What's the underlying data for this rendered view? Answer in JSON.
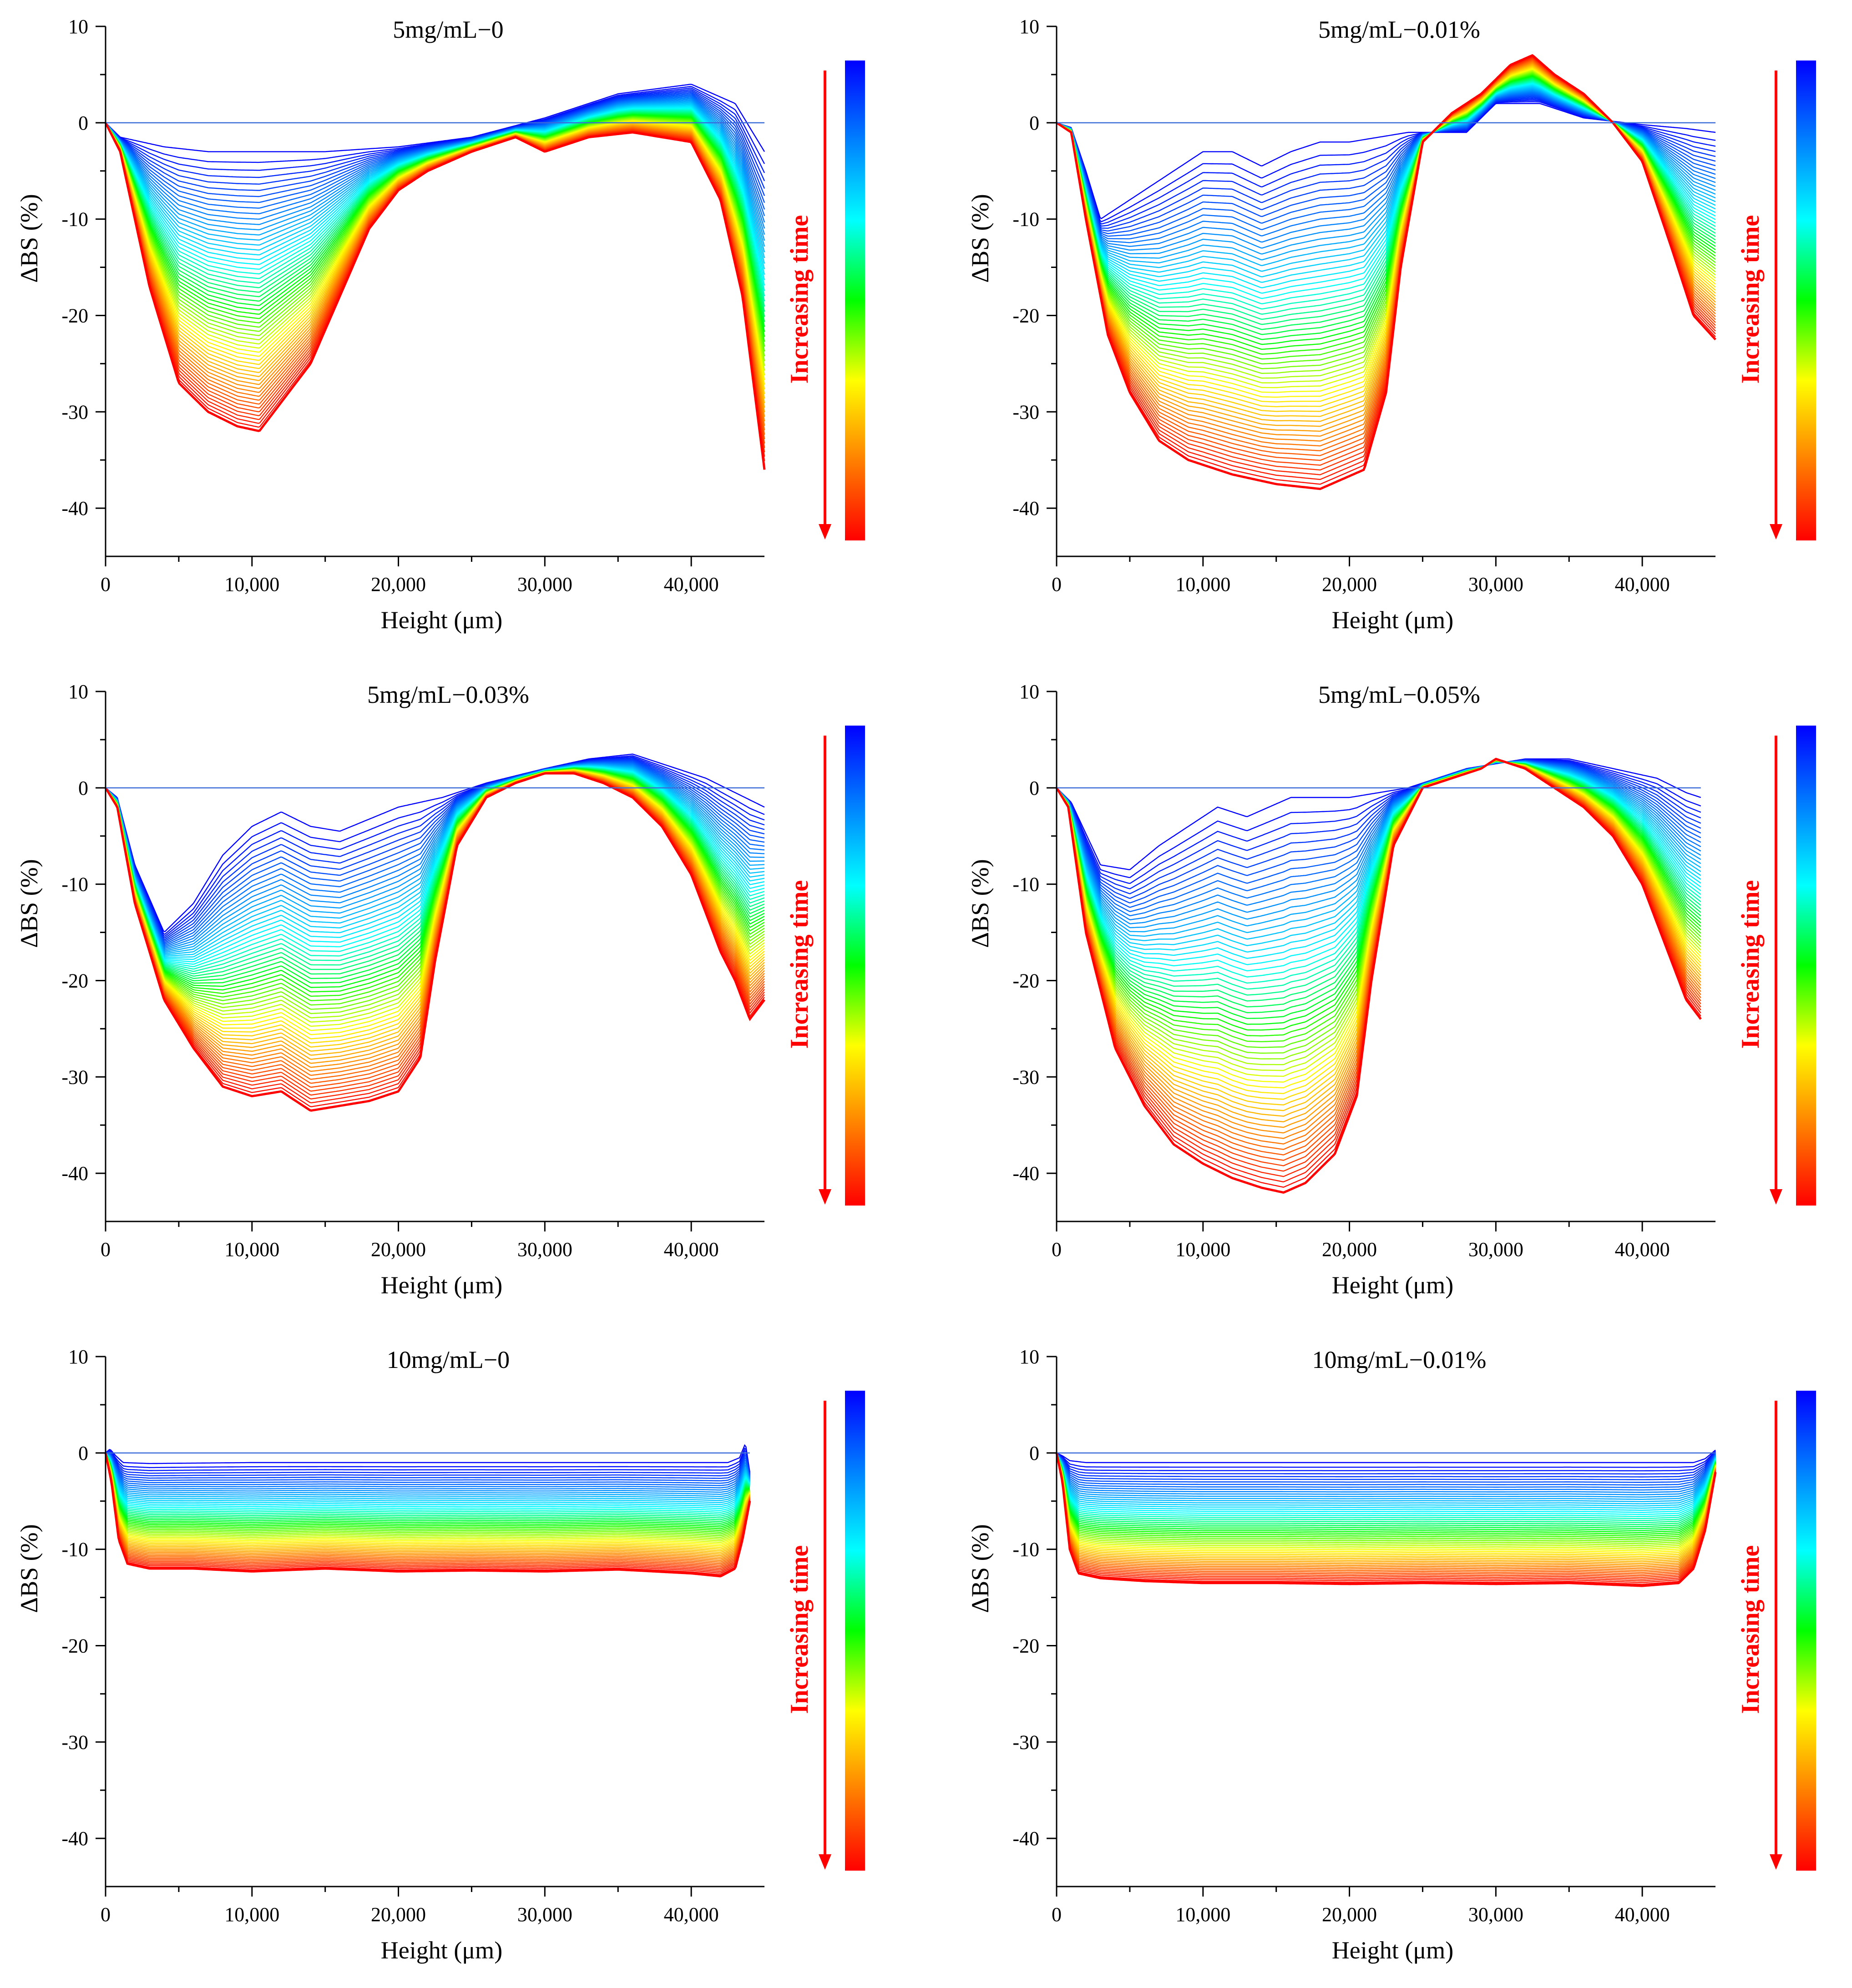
{
  "figure": {
    "legend_label": "Increasing time",
    "colormap": [
      "#ff0000",
      "#ff8000",
      "#ffff00",
      "#00ff00",
      "#00ffff",
      "#0080ff",
      "#0000ff"
    ],
    "arrow_color": "#ff0000"
  },
  "chart_data": [
    {
      "type": "line",
      "title": "5mg/mL−0",
      "xlabel": "Height (μm)",
      "ylabel": "ΔBS (%)",
      "xlim": [
        0,
        45000
      ],
      "ylim": [
        -45,
        10
      ],
      "xticks": [
        0,
        10000,
        20000,
        30000,
        40000
      ],
      "xtick_labels": [
        "0",
        "10,000",
        "20,000",
        "30,000",
        "40,000"
      ],
      "yticks": [
        10,
        0,
        -10,
        -20,
        -30,
        -40
      ],
      "ytick_labels": [
        "10",
        "0",
        "-10",
        "-20",
        "-30",
        "-40"
      ],
      "n_curves": 60,
      "baseline": 0,
      "x_end": 45000,
      "first_curve": {
        "x": [
          0,
          1000,
          4000,
          7000,
          10000,
          15000,
          20000,
          25000,
          30000,
          35000,
          40000,
          43000,
          45000
        ],
        "y": [
          0,
          -1.5,
          -2.5,
          -3,
          -3,
          -3,
          -2.5,
          -1.5,
          0.5,
          3,
          4,
          2,
          -3
        ]
      },
      "final_curve": {
        "x": [
          0,
          1000,
          3000,
          5000,
          7000,
          9000,
          10500,
          12000,
          14000,
          16000,
          18000,
          20000,
          22000,
          25000,
          28000,
          30000,
          33000,
          36000,
          40000,
          42000,
          43500,
          45000
        ],
        "y": [
          0,
          -3,
          -17,
          -27,
          -30,
          -31.5,
          -32,
          -29,
          -25,
          -18,
          -11,
          -7,
          -5,
          -3,
          -1.5,
          -3,
          -1.5,
          -1,
          -2,
          -8,
          -18,
          -36
        ]
      }
    },
    {
      "type": "line",
      "title": "5mg/mL−0.01%",
      "xlabel": "Height (μm)",
      "ylabel": "ΔBS (%)",
      "xlim": [
        0,
        45000
      ],
      "ylim": [
        -45,
        10
      ],
      "xticks": [
        0,
        10000,
        20000,
        30000,
        40000
      ],
      "xtick_labels": [
        "0",
        "10,000",
        "20,000",
        "30,000",
        "40,000"
      ],
      "yticks": [
        10,
        0,
        -10,
        -20,
        -30,
        -40
      ],
      "ytick_labels": [
        "10",
        "0",
        "-10",
        "-20",
        "-30",
        "-40"
      ],
      "n_curves": 60,
      "baseline": 0,
      "x_end": 45000,
      "first_curve": {
        "x": [
          0,
          1000,
          2000,
          3000,
          5000,
          8000,
          10000,
          12000,
          14000,
          16000,
          18000,
          20000,
          24000,
          28000,
          30000,
          33000,
          36000,
          40000,
          43000,
          45000
        ],
        "y": [
          0,
          -0.5,
          -5,
          -10,
          -8,
          -5,
          -3,
          -3,
          -4.5,
          -3,
          -2,
          -2,
          -1,
          -1,
          2,
          2,
          0.5,
          -0.2,
          -0.6,
          -1
        ]
      },
      "final_curve": {
        "x": [
          0,
          1000,
          2000,
          3500,
          5000,
          7000,
          9000,
          12000,
          15000,
          18000,
          21000,
          22500,
          23500,
          25000,
          27000,
          29000,
          31000,
          32500,
          34000,
          36000,
          38000,
          40000,
          42000,
          43500,
          45000
        ],
        "y": [
          0,
          -1,
          -10,
          -22,
          -28,
          -33,
          -35,
          -36.5,
          -37.5,
          -38,
          -36,
          -28,
          -15,
          -2,
          1,
          3,
          6,
          7,
          5,
          3,
          0,
          -4,
          -13,
          -20,
          -22.5
        ]
      }
    },
    {
      "type": "line",
      "title": "5mg/mL−0.03%",
      "xlabel": "Height (μm)",
      "ylabel": "ΔBS (%)",
      "xlim": [
        0,
        45000
      ],
      "ylim": [
        -45,
        10
      ],
      "xticks": [
        0,
        10000,
        20000,
        30000,
        40000
      ],
      "xtick_labels": [
        "0",
        "10,000",
        "20,000",
        "30,000",
        "40,000"
      ],
      "yticks": [
        10,
        0,
        -10,
        -20,
        -30,
        -40
      ],
      "ytick_labels": [
        "10",
        "0",
        "-10",
        "-20",
        "-30",
        "-40"
      ],
      "n_curves": 60,
      "baseline": 0,
      "x_end": 45000,
      "first_curve": {
        "x": [
          0,
          800,
          2000,
          4000,
          6000,
          8000,
          10000,
          12000,
          14000,
          16000,
          20000,
          23000,
          26000,
          30000,
          33000,
          36000,
          38000,
          41000,
          43000,
          45000
        ],
        "y": [
          0,
          -1,
          -8,
          -15,
          -12,
          -7,
          -4,
          -2.5,
          -4,
          -4.5,
          -2,
          -1,
          0.5,
          2,
          3,
          3.5,
          2.5,
          1,
          -0.5,
          -2
        ]
      },
      "final_curve": {
        "x": [
          0,
          800,
          2000,
          4000,
          6000,
          8000,
          10000,
          12000,
          14000,
          16000,
          18000,
          20000,
          21500,
          22500,
          24000,
          26000,
          28000,
          30000,
          32000,
          34000,
          36000,
          38000,
          40000,
          42000,
          43000,
          44000,
          45000
        ],
        "y": [
          0,
          -2,
          -12,
          -22,
          -27,
          -31,
          -32,
          -31.5,
          -33.5,
          -33,
          -32.5,
          -31.5,
          -28,
          -18,
          -6,
          -1,
          0.5,
          1.5,
          1.5,
          0.5,
          -1,
          -4,
          -9,
          -17,
          -20,
          -24,
          -22
        ]
      }
    },
    {
      "type": "line",
      "title": "5mg/mL−0.05%",
      "xlabel": "Height (μm)",
      "ylabel": "ΔBS (%)",
      "xlim": [
        0,
        45000
      ],
      "ylim": [
        -45,
        10
      ],
      "xticks": [
        0,
        10000,
        20000,
        30000,
        40000
      ],
      "xtick_labels": [
        "0",
        "10,000",
        "20,000",
        "30,000",
        "40,000"
      ],
      "yticks": [
        10,
        0,
        -10,
        -20,
        -30,
        -40
      ],
      "ytick_labels": [
        "10",
        "0",
        "-10",
        "-20",
        "-30",
        "-40"
      ],
      "n_curves": 60,
      "baseline": 0,
      "x_end": 44000,
      "first_curve": {
        "x": [
          0,
          1000,
          3000,
          5000,
          7000,
          9000,
          11000,
          13000,
          16000,
          20000,
          24000,
          26000,
          28000,
          30000,
          32000,
          35000,
          38000,
          41000,
          43000,
          44000
        ],
        "y": [
          0,
          -1.5,
          -8,
          -8.5,
          -6,
          -4,
          -2,
          -3,
          -1,
          -1,
          0,
          1,
          2,
          2.5,
          3,
          3,
          2,
          1,
          -0.5,
          -1
        ]
      },
      "final_curve": {
        "x": [
          0,
          800,
          2000,
          4000,
          6000,
          8000,
          10000,
          12000,
          14000,
          15500,
          17000,
          19000,
          20500,
          21500,
          23000,
          25000,
          27000,
          29000,
          30000,
          32000,
          34000,
          36000,
          38000,
          40000,
          42000,
          43000,
          44000
        ],
        "y": [
          0,
          -2,
          -15,
          -27,
          -33,
          -37,
          -39,
          -40.5,
          -41.5,
          -42,
          -41,
          -38,
          -32,
          -20,
          -6,
          0,
          1,
          2,
          3,
          2,
          0,
          -2,
          -5,
          -10,
          -18,
          -22,
          -24
        ]
      }
    },
    {
      "type": "line",
      "title": "10mg/mL−0",
      "xlabel": "Height (μm)",
      "ylabel": "ΔBS (%)",
      "xlim": [
        0,
        45000
      ],
      "ylim": [
        -45,
        10
      ],
      "xticks": [
        0,
        10000,
        20000,
        30000,
        40000
      ],
      "xtick_labels": [
        "0",
        "10,000",
        "20,000",
        "30,000",
        "40,000"
      ],
      "yticks": [
        10,
        0,
        -10,
        -20,
        -30,
        -40
      ],
      "ytick_labels": [
        "10",
        "0",
        "-10",
        "-20",
        "-30",
        "-40"
      ],
      "n_curves": 60,
      "baseline": 0,
      "x_end": 44000,
      "first_curve": {
        "x": [
          0,
          300,
          700,
          1200,
          3000,
          10000,
          20000,
          30000,
          40000,
          42500,
          43300,
          43700,
          44000
        ],
        "y": [
          0,
          0.4,
          -0.3,
          -1,
          -1.1,
          -1,
          -1,
          -1,
          -1,
          -1,
          -0.5,
          1,
          -2
        ]
      },
      "final_curve": {
        "x": [
          0,
          400,
          900,
          1500,
          3000,
          6000,
          10000,
          15000,
          20000,
          25000,
          30000,
          35000,
          40000,
          42000,
          43000,
          43500,
          44000
        ],
        "y": [
          0,
          -3,
          -9,
          -11.5,
          -12,
          -12,
          -12.3,
          -12,
          -12.3,
          -12.2,
          -12.3,
          -12.1,
          -12.5,
          -12.8,
          -12,
          -9,
          -5
        ]
      }
    },
    {
      "type": "line",
      "title": "10mg/mL−0.01%",
      "xlabel": "Height (μm)",
      "ylabel": "ΔBS (%)",
      "xlim": [
        0,
        45000
      ],
      "ylim": [
        -45,
        10
      ],
      "xticks": [
        0,
        10000,
        20000,
        30000,
        40000
      ],
      "xtick_labels": [
        "0",
        "10,000",
        "20,000",
        "30,000",
        "40,000"
      ],
      "yticks": [
        10,
        0,
        -10,
        -20,
        -30,
        -40
      ],
      "ytick_labels": [
        "10",
        "0",
        "-10",
        "-20",
        "-30",
        "-40"
      ],
      "n_curves": 60,
      "baseline": 0,
      "x_end": 45000,
      "first_curve": {
        "x": [
          0,
          400,
          900,
          2000,
          10000,
          20000,
          30000,
          40000,
          43500,
          44300,
          45000
        ],
        "y": [
          0,
          -0.3,
          -0.8,
          -1,
          -1,
          -1,
          -1,
          -1,
          -1,
          -0.6,
          0.3
        ]
      },
      "final_curve": {
        "x": [
          0,
          400,
          900,
          1500,
          3000,
          6000,
          10000,
          15000,
          20000,
          25000,
          30000,
          35000,
          40000,
          42500,
          43500,
          44300,
          45000
        ],
        "y": [
          0,
          -3,
          -10,
          -12.5,
          -13,
          -13.3,
          -13.5,
          -13.5,
          -13.6,
          -13.5,
          -13.6,
          -13.5,
          -13.8,
          -13.5,
          -12,
          -8,
          -2
        ]
      }
    }
  ]
}
